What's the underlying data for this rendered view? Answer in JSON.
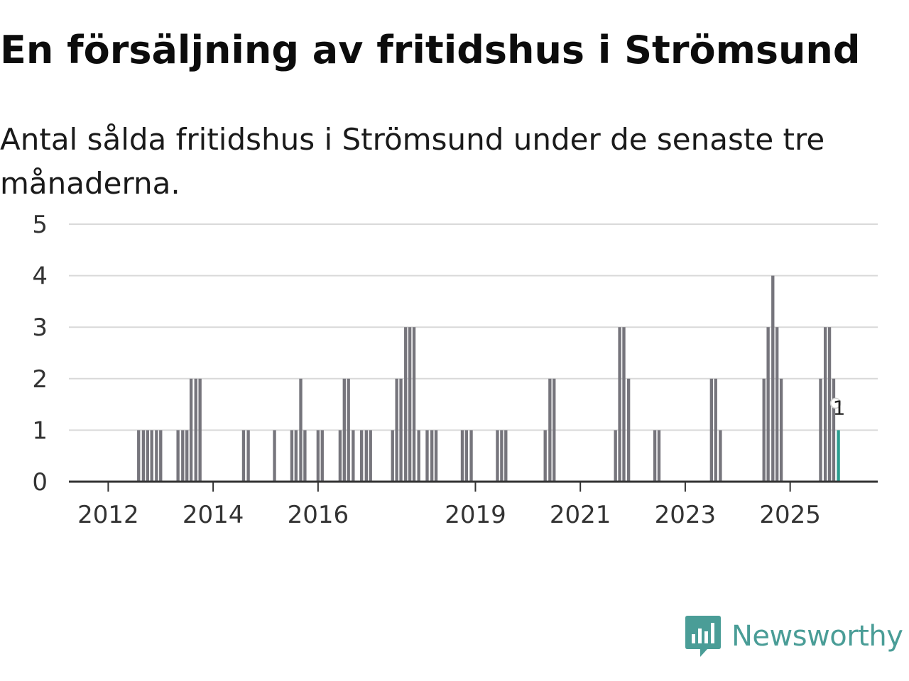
{
  "title": "En försäljning av fritidshus i Strömsund",
  "subtitle": "Antal sålda fritidshus i Strömsund under de senaste tre månaderna.",
  "brand": {
    "name": "Newsworthy",
    "icon": "newsworthy-logo-icon",
    "color": "#4a9d97"
  },
  "colors": {
    "bar": "#76757c",
    "highlight": "#2a9d8f",
    "grid": "#d9d9d9",
    "axis": "#333333"
  },
  "chart_data": {
    "type": "bar",
    "title": "En försäljning av fritidshus i Strömsund",
    "xlabel": "",
    "ylabel": "",
    "ylim": [
      0,
      5
    ],
    "y_ticks": [
      "0",
      "1",
      "2",
      "3",
      "4",
      "5"
    ],
    "x_ticks": [
      {
        "label": "2012",
        "x": 2012.0
      },
      {
        "label": "2014",
        "x": 2014.0
      },
      {
        "label": "2016",
        "x": 2016.0
      },
      {
        "label": "2019",
        "x": 2019.0
      },
      {
        "label": "2021",
        "x": 2021.0
      },
      {
        "label": "2023",
        "x": 2023.0
      },
      {
        "label": "2025",
        "x": 2025.0
      }
    ],
    "xlim": [
      2011.25,
      2026.67
    ],
    "bar_width_years": 0.0833,
    "last_value_label": "1",
    "series": [
      {
        "name": "Antal sålda fritidshus",
        "points": [
          {
            "x": 2012.58,
            "y": 1
          },
          {
            "x": 2012.67,
            "y": 1
          },
          {
            "x": 2012.75,
            "y": 1
          },
          {
            "x": 2012.83,
            "y": 1
          },
          {
            "x": 2012.92,
            "y": 1
          },
          {
            "x": 2013.0,
            "y": 1
          },
          {
            "x": 2013.33,
            "y": 1
          },
          {
            "x": 2013.42,
            "y": 1
          },
          {
            "x": 2013.5,
            "y": 1
          },
          {
            "x": 2013.58,
            "y": 2
          },
          {
            "x": 2013.67,
            "y": 2
          },
          {
            "x": 2013.75,
            "y": 2
          },
          {
            "x": 2014.58,
            "y": 1
          },
          {
            "x": 2014.67,
            "y": 1
          },
          {
            "x": 2015.17,
            "y": 1
          },
          {
            "x": 2015.5,
            "y": 1
          },
          {
            "x": 2015.58,
            "y": 1
          },
          {
            "x": 2015.67,
            "y": 2
          },
          {
            "x": 2015.75,
            "y": 1
          },
          {
            "x": 2016.0,
            "y": 1
          },
          {
            "x": 2016.08,
            "y": 1
          },
          {
            "x": 2016.42,
            "y": 1
          },
          {
            "x": 2016.5,
            "y": 2
          },
          {
            "x": 2016.58,
            "y": 2
          },
          {
            "x": 2016.67,
            "y": 1
          },
          {
            "x": 2016.83,
            "y": 1
          },
          {
            "x": 2016.92,
            "y": 1
          },
          {
            "x": 2017.0,
            "y": 1
          },
          {
            "x": 2017.42,
            "y": 1
          },
          {
            "x": 2017.5,
            "y": 2
          },
          {
            "x": 2017.58,
            "y": 2
          },
          {
            "x": 2017.67,
            "y": 3
          },
          {
            "x": 2017.75,
            "y": 3
          },
          {
            "x": 2017.83,
            "y": 3
          },
          {
            "x": 2017.92,
            "y": 1
          },
          {
            "x": 2018.08,
            "y": 1
          },
          {
            "x": 2018.17,
            "y": 1
          },
          {
            "x": 2018.25,
            "y": 1
          },
          {
            "x": 2018.75,
            "y": 1
          },
          {
            "x": 2018.83,
            "y": 1
          },
          {
            "x": 2018.92,
            "y": 1
          },
          {
            "x": 2019.42,
            "y": 1
          },
          {
            "x": 2019.5,
            "y": 1
          },
          {
            "x": 2019.58,
            "y": 1
          },
          {
            "x": 2020.33,
            "y": 1
          },
          {
            "x": 2020.42,
            "y": 2
          },
          {
            "x": 2020.5,
            "y": 2
          },
          {
            "x": 2021.67,
            "y": 1
          },
          {
            "x": 2021.75,
            "y": 3
          },
          {
            "x": 2021.83,
            "y": 3
          },
          {
            "x": 2021.92,
            "y": 2
          },
          {
            "x": 2022.42,
            "y": 1
          },
          {
            "x": 2022.5,
            "y": 1
          },
          {
            "x": 2023.5,
            "y": 2
          },
          {
            "x": 2023.58,
            "y": 2
          },
          {
            "x": 2023.67,
            "y": 1
          },
          {
            "x": 2024.5,
            "y": 2
          },
          {
            "x": 2024.58,
            "y": 3
          },
          {
            "x": 2024.67,
            "y": 4
          },
          {
            "x": 2024.75,
            "y": 3
          },
          {
            "x": 2024.83,
            "y": 2
          },
          {
            "x": 2025.58,
            "y": 2
          },
          {
            "x": 2025.67,
            "y": 3
          },
          {
            "x": 2025.75,
            "y": 3
          },
          {
            "x": 2025.83,
            "y": 2
          },
          {
            "x": 2025.92,
            "y": 1,
            "highlight": true
          }
        ]
      }
    ]
  }
}
